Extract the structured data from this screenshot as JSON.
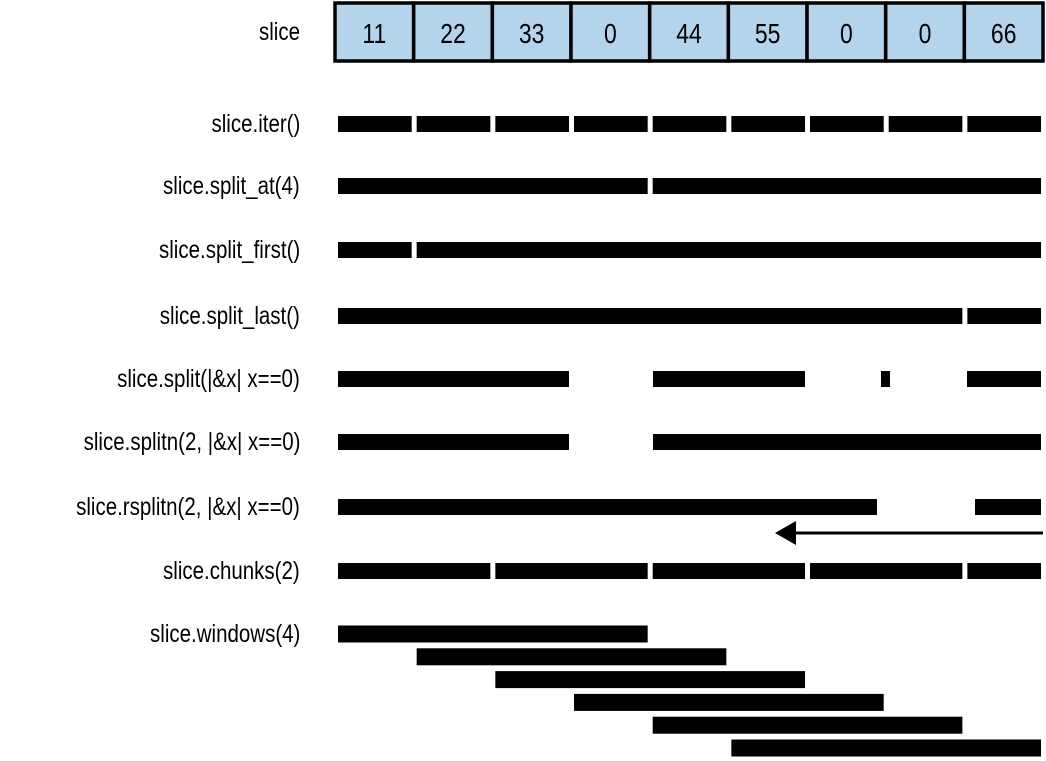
{
  "slice": {
    "label": "slice",
    "values": [
      "11",
      "22",
      "33",
      "0",
      "44",
      "55",
      "0",
      "0",
      "66"
    ],
    "cell_color": "#b3d4ea"
  },
  "rows": [
    {
      "label": "slice.iter()"
    },
    {
      "label": "slice.split_at(4)"
    },
    {
      "label": "slice.split_first()"
    },
    {
      "label": "slice.split_last()"
    },
    {
      "label": "slice.split(|&x| x==0)"
    },
    {
      "label": "slice.splitn(2, |&x| x==0)"
    },
    {
      "label": "slice.rsplitn(2, |&x| x==0)"
    },
    {
      "label": "slice.chunks(2)"
    },
    {
      "label": "slice.windows(4)"
    }
  ]
}
